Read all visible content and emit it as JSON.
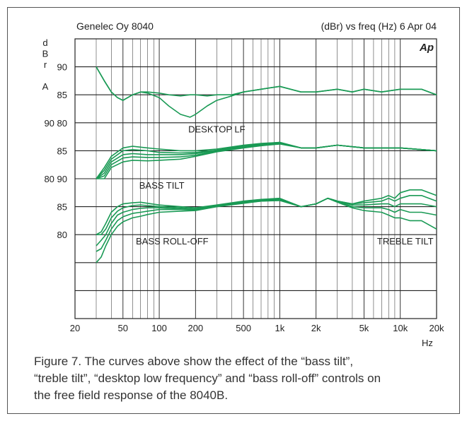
{
  "chart_data": {
    "type": "line",
    "header_left": "Genelec Oy 8040",
    "header_right": "(dBr) vs freq (Hz) 6 Apr 04",
    "logo_text": "Ap",
    "xlabel": "Hz",
    "xscale": "log",
    "xlim": [
      20,
      20000
    ],
    "x_ticks": [
      20,
      50,
      100,
      200,
      500,
      1000,
      2000,
      5000,
      10000,
      20000
    ],
    "x_tick_labels": [
      "20",
      "50",
      "100",
      "200",
      "500",
      "1k",
      "2k",
      "5k",
      "10k",
      "20k"
    ],
    "ylabel_chars": [
      "d",
      "B",
      "r",
      "",
      "A"
    ],
    "y_tick_labels": [
      {
        "text": "90",
        "row": 1
      },
      {
        "text": "85",
        "row": 2
      },
      {
        "text": "90 80",
        "row": 3
      },
      {
        "text": "85",
        "row": 4
      },
      {
        "text": "80 90",
        "row": 5
      },
      {
        "text": "85",
        "row": 6
      },
      {
        "text": "80",
        "row": 7
      }
    ],
    "grid": true,
    "line_color": "#1a9a55",
    "annotations": [
      {
        "text": "DESKTOP LF",
        "x": 300,
        "row": 3.35
      },
      {
        "text": "BASS TILT",
        "x": 105,
        "row": 5.35
      },
      {
        "text": "BASS ROLL-OFF",
        "x": 128,
        "row": 7.35
      },
      {
        "text": "TREBLE TILT",
        "x": 11000,
        "row": 7.35
      }
    ],
    "groups": [
      {
        "name": "DESKTOP LF",
        "x": [
          30,
          35,
          40,
          45,
          50,
          60,
          70,
          80,
          100,
          120,
          150,
          180,
          200,
          250,
          300,
          400,
          500,
          700,
          1000,
          1500,
          2000,
          3000,
          4000,
          5000,
          7000,
          10000,
          15000,
          20000
        ],
        "series": [
          {
            "values": [
              90,
              87.5,
              85.5,
              84.5,
              84,
              85,
              85.5,
              85.5,
              85.3,
              85,
              84.8,
              85,
              85,
              84.8,
              85,
              85,
              85.5,
              86,
              86.5,
              85.5,
              85.5,
              86,
              85.5,
              86,
              85.5,
              86,
              86,
              85
            ]
          },
          {
            "values": [
              90,
              87.5,
              85.5,
              84.5,
              84,
              85,
              85.5,
              85.3,
              84.5,
              83,
              81.5,
              81,
              81.5,
              83,
              84,
              84.8,
              85.5,
              86,
              86.5,
              85.5,
              85.5,
              86,
              85.5,
              86,
              85.5,
              86,
              86,
              85
            ]
          }
        ]
      },
      {
        "name": "BASS TILT",
        "x": [
          30,
          35,
          40,
          50,
          60,
          80,
          100,
          150,
          200,
          300,
          500,
          700,
          1000,
          1500,
          2000,
          3000,
          5000,
          10000,
          20000
        ],
        "series": [
          {
            "values": [
              80,
              82,
              84,
              85.5,
              85.8,
              85.5,
              85.3,
              85,
              85,
              85.3,
              86,
              86.3,
              86.5,
              85.5,
              85.5,
              86,
              85.5,
              85.5,
              85
            ]
          },
          {
            "values": [
              80,
              81.5,
              83.5,
              85,
              85.2,
              85,
              84.7,
              84.6,
              84.7,
              85.1,
              85.9,
              86.2,
              86.5,
              85.5,
              85.5,
              86,
              85.5,
              85.5,
              85
            ]
          },
          {
            "values": [
              80,
              81,
              83,
              84.3,
              84.5,
              84.3,
              84.3,
              84.3,
              84.5,
              85,
              85.8,
              86.1,
              86.4,
              85.5,
              85.5,
              86,
              85.5,
              85.5,
              85
            ]
          },
          {
            "values": [
              80,
              80.5,
              82.5,
              83.7,
              83.9,
              83.8,
              83.8,
              83.9,
              84.2,
              84.9,
              85.6,
              86,
              86.3,
              85.5,
              85.5,
              86,
              85.5,
              85.5,
              85
            ]
          },
          {
            "values": [
              80,
              80,
              82,
              83,
              83.3,
              83.2,
              83.3,
              83.5,
              84,
              84.8,
              85.5,
              85.9,
              86.2,
              85.5,
              85.5,
              86,
              85.5,
              85.5,
              85
            ]
          }
        ]
      },
      {
        "name": "BASS ROLL-OFF / TREBLE TILT",
        "x": [
          30,
          33,
          36,
          40,
          45,
          50,
          60,
          70,
          80,
          100,
          150,
          200,
          300,
          500,
          700,
          1000,
          1500,
          2000,
          2500,
          3000,
          4000,
          5000,
          7000,
          8000,
          9000,
          10000,
          12000,
          15000,
          20000
        ],
        "series": [
          {
            "values": [
              80,
              80.5,
              82,
              84,
              85,
              85.5,
              85.7,
              85.8,
              85.6,
              85.3,
              85,
              84.8,
              85.3,
              86,
              86.3,
              86.5,
              85,
              85.5,
              86.5,
              86,
              85.5,
              86,
              86.5,
              87,
              86.5,
              87.5,
              88,
              88,
              87
            ]
          },
          {
            "values": [
              80,
              80,
              81,
              83,
              84.2,
              84.8,
              85.2,
              85.3,
              85.2,
              85,
              84.8,
              84.6,
              85.2,
              85.9,
              86.2,
              86.4,
              85,
              85.5,
              86.5,
              86,
              85.5,
              85.7,
              86,
              86.5,
              86,
              86.5,
              87,
              87,
              86
            ]
          },
          {
            "values": [
              78,
              79,
              80,
              82,
              83.5,
              84,
              84.5,
              84.7,
              84.8,
              84.8,
              84.6,
              84.5,
              85.1,
              85.8,
              86.1,
              86.3,
              85,
              85.5,
              86.5,
              86,
              85.3,
              85.3,
              85.5,
              85.5,
              85,
              85.5,
              85.5,
              85.5,
              85
            ]
          },
          {
            "values": [
              77,
              77.5,
              79,
              81,
              82.5,
              83.2,
              83.8,
              84,
              84.2,
              84.5,
              84.5,
              84.4,
              85,
              85.7,
              86,
              86.2,
              85,
              85.5,
              86.5,
              86,
              85,
              84.8,
              84.8,
              84.5,
              84,
              84.5,
              84,
              84,
              83.5
            ]
          },
          {
            "values": [
              75,
              76,
              78,
              80,
              81.5,
              82.3,
              83,
              83.3,
              83.6,
              84,
              84.2,
              84.3,
              85,
              85.6,
              86,
              86.1,
              85,
              85.5,
              86.5,
              85.8,
              84.8,
              84.3,
              84,
              83.5,
              83,
              83,
              82.5,
              82.5,
              81
            ]
          }
        ]
      }
    ]
  },
  "caption": {
    "line1": "Figure 7. The curves above show the effect of the “bass tilt”,",
    "line2": "“treble tilt”, “desktop low frequency” and “bass roll-off” controls on",
    "line3": "the free field response of the 8040B."
  }
}
